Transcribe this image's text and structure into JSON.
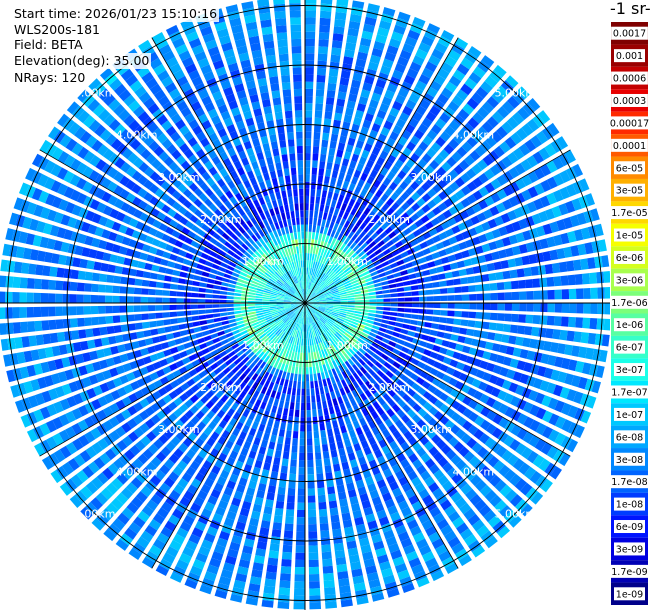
{
  "info": {
    "start_time": "Start time: 2026/01/23 15:10:16",
    "instrument": "WLS200s-181",
    "field": "Field: BETA",
    "elevation": "Elevation(deg): 35.00",
    "nrays": "NRays: 120"
  },
  "colorbar": {
    "title": "-1 sr-",
    "labels": [
      "0.0017",
      "0.001",
      "0.0006",
      "0.0003",
      "0.00017",
      "0.0001",
      "6e-05",
      "3e-05",
      "1.7e-05",
      "1e-05",
      "6e-06",
      "3e-06",
      "1.7e-06",
      "1e-06",
      "6e-07",
      "3e-07",
      "1.7e-07",
      "1e-07",
      "6e-08",
      "3e-08",
      "1.7e-08",
      "1e-08",
      "6e-09",
      "3e-09",
      "1.7e-09",
      "1e-09"
    ],
    "colors": [
      "#7f0000",
      "#9a0000",
      "#c40000",
      "#e80000",
      "#ff2a00",
      "#ff5a00",
      "#ff8a00",
      "#ffb000",
      "#ffd800",
      "#f6ff00",
      "#d4ff1e",
      "#a8ff4e",
      "#7cff7a",
      "#58ffa2",
      "#36ffca",
      "#1affe8",
      "#00e8ff",
      "#00c8ff",
      "#00a8ff",
      "#0088ff",
      "#0064ff",
      "#003cff",
      "#0014ff",
      "#0000e0",
      "#0000b4",
      "#00008a"
    ]
  },
  "chart_data": {
    "type": "heatmap",
    "projection": "polar PPI",
    "field": "BETA",
    "elevation_deg": 35.0,
    "n_rays": 120,
    "range_rings_km": [
      1,
      2,
      3,
      4,
      5
    ],
    "ring_labels": [
      "1.00km",
      "2.00km",
      "3.00km",
      "4.00km",
      "5.00km"
    ],
    "max_range_km": 5.15,
    "azimuth_spokes_deg": [
      0,
      30,
      60,
      90,
      120,
      150,
      180,
      210,
      240,
      270,
      300,
      330
    ],
    "radial_profile": [
      {
        "range_km": 0.2,
        "beta": 1.7e-07
      },
      {
        "range_km": 0.5,
        "beta": 1.7e-07
      },
      {
        "range_km": 0.8,
        "beta": 3e-07
      },
      {
        "range_km": 1.0,
        "beta": 1e-06
      },
      {
        "range_km": 1.15,
        "beta": 3e-07
      },
      {
        "range_km": 1.3,
        "beta": 1.7e-08
      },
      {
        "range_km": 1.6,
        "beta": 1e-08
      },
      {
        "range_km": 2.0,
        "beta": 1.7e-08
      },
      {
        "range_km": 3.0,
        "beta": 3e-08
      },
      {
        "range_km": 4.0,
        "beta": 3e-08
      },
      {
        "range_km": 5.0,
        "beta": 6e-08
      }
    ],
    "colorbar_range": [
      1e-09,
      0.0017
    ],
    "grid": true
  }
}
